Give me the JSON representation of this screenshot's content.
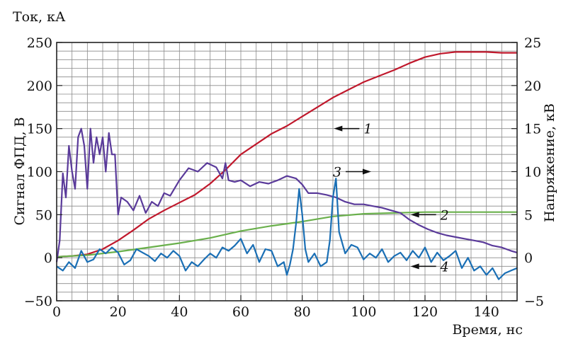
{
  "chart_data": {
    "type": "line",
    "title": "",
    "xlabel": "Время, нс",
    "ylabel_left_top": "Ток, кА",
    "ylabel_left": "Сигнал ФПД, В",
    "ylabel_right": "Напряжение, кВ",
    "xlim": [
      0,
      150
    ],
    "ylim_left": [
      -50,
      250
    ],
    "ylim_right": [
      -5,
      25
    ],
    "grid": true,
    "x_ticks": [
      0,
      20,
      40,
      60,
      80,
      100,
      120,
      140
    ],
    "y_left_ticks": [
      -50,
      0,
      50,
      100,
      150,
      200,
      250
    ],
    "y_right_ticks": [
      -5,
      0,
      5,
      10,
      15,
      20,
      25
    ],
    "x_tick_labels": [
      "0",
      "20",
      "40",
      "60",
      "80",
      "100",
      "120",
      "140"
    ],
    "y_left_tick_labels": [
      "−50",
      "0",
      "50",
      "100",
      "150",
      "200",
      "250"
    ],
    "y_right_tick_labels": [
      "−5",
      "0",
      "5",
      "10",
      "15",
      "20",
      "25"
    ],
    "series": [
      {
        "id": "1",
        "color": "#c0182c",
        "axis": "left",
        "x": [
          0,
          5,
          10,
          15,
          20,
          25,
          30,
          35,
          40,
          45,
          50,
          55,
          60,
          65,
          70,
          75,
          80,
          85,
          90,
          95,
          100,
          105,
          110,
          115,
          120,
          125,
          130,
          135,
          140,
          145,
          150
        ],
        "y": [
          1,
          2,
          4,
          10,
          20,
          32,
          45,
          55,
          64,
          73,
          86,
          102,
          120,
          132,
          144,
          153,
          164,
          175,
          186,
          195,
          204,
          211,
          218,
          226,
          233,
          237,
          239,
          239,
          239,
          238,
          238
        ]
      },
      {
        "id": "2",
        "color": "#6ab04c",
        "axis": "left",
        "x": [
          0,
          10,
          20,
          30,
          40,
          50,
          60,
          70,
          80,
          90,
          100,
          110,
          120,
          130,
          140,
          150
        ],
        "y": [
          1,
          3,
          7,
          12,
          17,
          23,
          31,
          37,
          42,
          48,
          51,
          52,
          53,
          53,
          53,
          53
        ]
      },
      {
        "id": "3",
        "color": "#5a3a9a",
        "axis": "left",
        "x": [
          0,
          1,
          2,
          3,
          4,
          5,
          6,
          7,
          8,
          9,
          10,
          11,
          12,
          13,
          14,
          15,
          16,
          17,
          18,
          19,
          20,
          21,
          23,
          25,
          27,
          29,
          31,
          33,
          35,
          37,
          40,
          43,
          46,
          49,
          52,
          54,
          55,
          56,
          58,
          60,
          63,
          66,
          69,
          72,
          75,
          78,
          80,
          82,
          85,
          88,
          91,
          94,
          97,
          100,
          103,
          106,
          109,
          112,
          115,
          118,
          121,
          124,
          127,
          130,
          133,
          136,
          139,
          142,
          145,
          148,
          150
        ],
        "y": [
          -5,
          20,
          98,
          70,
          130,
          100,
          80,
          140,
          150,
          130,
          80,
          150,
          110,
          140,
          120,
          140,
          100,
          145,
          120,
          120,
          50,
          70,
          65,
          55,
          72,
          52,
          65,
          60,
          75,
          72,
          90,
          104,
          100,
          110,
          105,
          92,
          110,
          90,
          88,
          90,
          83,
          88,
          86,
          90,
          95,
          92,
          85,
          75,
          75,
          73,
          70,
          65,
          62,
          62,
          60,
          58,
          55,
          52,
          44,
          38,
          33,
          29,
          26,
          24,
          22,
          20,
          18,
          14,
          12,
          8,
          6
        ]
      },
      {
        "id": "4",
        "color": "#1a6fb5",
        "axis": "left",
        "x": [
          0,
          2,
          4,
          6,
          8,
          10,
          12,
          14,
          16,
          18,
          20,
          22,
          24,
          26,
          28,
          30,
          32,
          34,
          36,
          38,
          40,
          42,
          44,
          46,
          48,
          50,
          52,
          54,
          56,
          58,
          60,
          62,
          64,
          66,
          68,
          70,
          72,
          74,
          75,
          76,
          77,
          78,
          79,
          80,
          81,
          82,
          84,
          86,
          88,
          89,
          90,
          91,
          92,
          94,
          96,
          98,
          100,
          102,
          104,
          106,
          108,
          110,
          112,
          114,
          116,
          118,
          120,
          122,
          124,
          126,
          128,
          130,
          132,
          134,
          136,
          138,
          140,
          142,
          144,
          146,
          148,
          150
        ],
        "y": [
          -10,
          -15,
          -5,
          -12,
          8,
          -5,
          -2,
          10,
          5,
          12,
          6,
          -8,
          -3,
          10,
          6,
          2,
          -4,
          5,
          0,
          8,
          2,
          -15,
          -5,
          -10,
          -2,
          5,
          0,
          12,
          8,
          14,
          22,
          5,
          15,
          -5,
          10,
          8,
          -10,
          -5,
          -20,
          -8,
          10,
          40,
          80,
          50,
          10,
          -5,
          5,
          -10,
          -5,
          20,
          70,
          92,
          30,
          5,
          15,
          12,
          -2,
          5,
          0,
          10,
          -5,
          2,
          6,
          -3,
          8,
          0,
          12,
          -5,
          6,
          -3,
          2,
          8,
          -12,
          0,
          -15,
          -10,
          -20,
          -12,
          -25,
          -18,
          -15,
          -12
        ]
      }
    ],
    "annotations": [
      {
        "label": "1",
        "arrow": "left",
        "x": 100,
        "y": 150
      },
      {
        "label": "2",
        "arrow": "left",
        "x": 125,
        "y": 50
      },
      {
        "label": "3",
        "arrow": "right",
        "x": 90,
        "y": 100
      },
      {
        "label": "4",
        "arrow": "left",
        "x": 125,
        "y": -10
      }
    ]
  }
}
